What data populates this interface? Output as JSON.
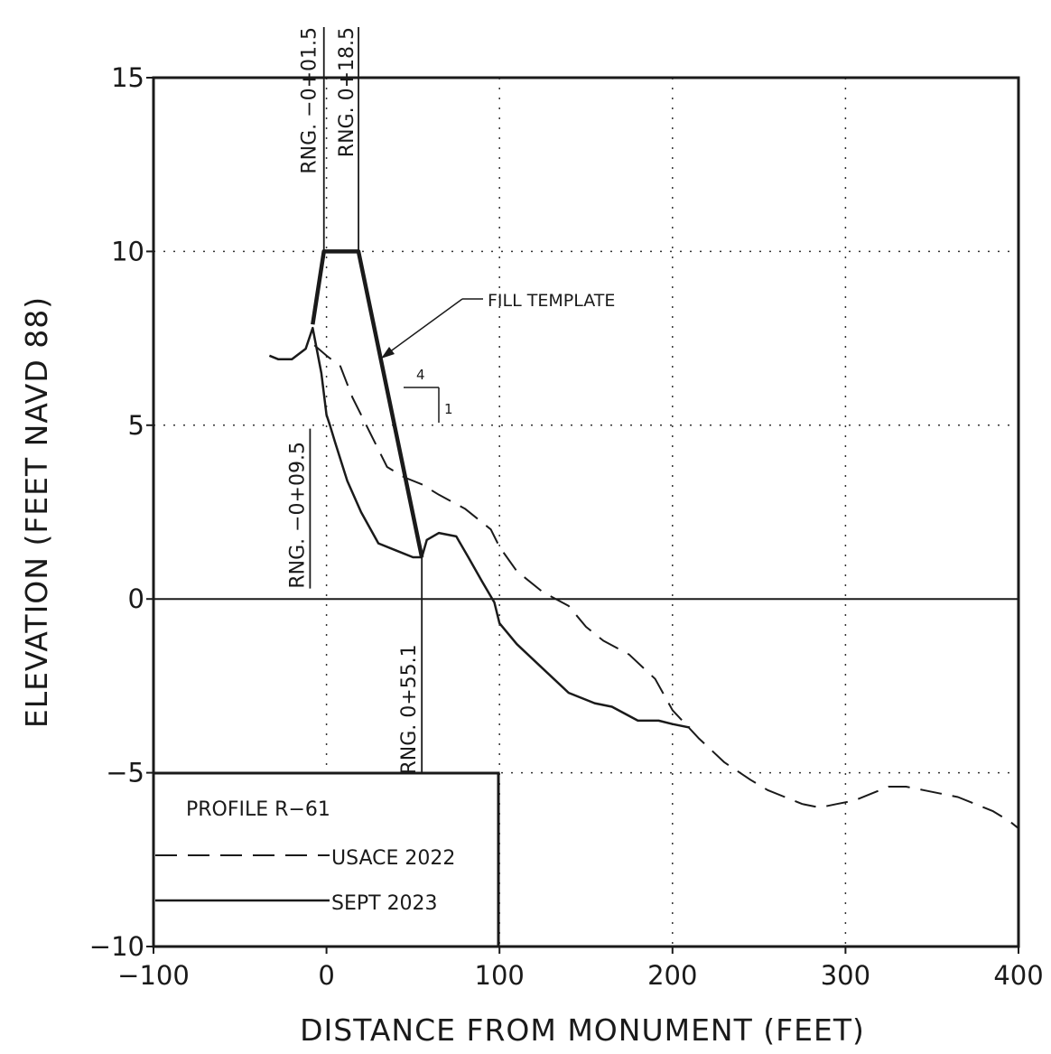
{
  "chart_data": {
    "type": "line",
    "xlabel": "DISTANCE FROM MONUMENT (FEET)",
    "ylabel": "ELEVATION (FEET NAVD 88)",
    "xlim": [
      -100,
      400
    ],
    "ylim": [
      -10,
      15
    ],
    "x_ticks": [
      -100,
      0,
      100,
      200,
      300,
      400
    ],
    "x_tick_labels": [
      "−100",
      "0",
      "100",
      "200",
      "300",
      "400"
    ],
    "y_ticks": [
      -10,
      -5,
      0,
      5,
      10,
      15
    ],
    "y_tick_labels": [
      "−10",
      "−5",
      "0",
      "5",
      "10",
      "15"
    ],
    "grid": "dotted",
    "legend": {
      "placement": "bottom-left",
      "title": "PROFILE   R−61",
      "entries": [
        "USACE 2022",
        "SEPT 2023"
      ]
    },
    "series": [
      {
        "name": "USACE 2022",
        "style": "dashed",
        "x": [
          -7,
          0,
          8,
          15,
          25,
          35,
          45,
          55,
          65,
          80,
          95,
          100,
          110,
          125,
          140,
          150,
          160,
          175,
          190,
          200,
          215,
          230,
          245,
          255,
          265,
          275,
          285,
          295,
          305,
          315,
          325,
          335,
          345,
          355,
          365,
          375,
          385,
          395,
          400
        ],
        "y": [
          7.3,
          7.0,
          6.7,
          5.8,
          4.8,
          3.8,
          3.5,
          3.3,
          3.0,
          2.6,
          2.0,
          1.5,
          0.8,
          0.2,
          -0.2,
          -0.8,
          -1.2,
          -1.6,
          -2.3,
          -3.2,
          -4.0,
          -4.7,
          -5.2,
          -5.5,
          -5.7,
          -5.9,
          -6.0,
          -5.9,
          -5.8,
          -5.6,
          -5.4,
          -5.4,
          -5.5,
          -5.6,
          -5.7,
          -5.9,
          -6.1,
          -6.4,
          -6.6
        ]
      },
      {
        "name": "SEPT 2023",
        "style": "solid",
        "x": [
          -33,
          -28,
          -20,
          -12,
          -8,
          -3,
          0,
          2,
          5,
          12,
          20,
          30,
          40,
          50,
          55.1,
          58,
          65,
          75,
          82,
          90,
          97,
          100,
          110,
          125,
          140,
          155,
          165,
          180,
          192,
          200,
          210
        ],
        "y": [
          7.0,
          6.9,
          6.9,
          7.2,
          7.8,
          6.5,
          5.3,
          5.0,
          4.5,
          3.4,
          2.5,
          1.6,
          1.4,
          1.2,
          1.2,
          1.7,
          1.9,
          1.8,
          1.2,
          0.5,
          -0.1,
          -0.7,
          -1.3,
          -2.0,
          -2.7,
          -3.0,
          -3.1,
          -3.5,
          -3.5,
          -3.6,
          -3.7
        ]
      },
      {
        "name": "FILL TEMPLATE",
        "style": "bold",
        "x": [
          -8,
          -1.5,
          18.5,
          55.1
        ],
        "y": [
          7.9,
          10.0,
          10.0,
          1.2
        ]
      }
    ],
    "range_lines": [
      {
        "label": "RNG. −0+01.5",
        "x": -1.5
      },
      {
        "label": "RNG.  0+18.5",
        "x": 18.5
      },
      {
        "label": "RNG. −0+09.5",
        "x": -9.5
      },
      {
        "label": "RNG.  0+55.1",
        "x": 55.1
      }
    ],
    "annotations": {
      "fill_template": "FILL TEMPLATE",
      "slope_run": "4",
      "slope_rise": "1"
    }
  }
}
